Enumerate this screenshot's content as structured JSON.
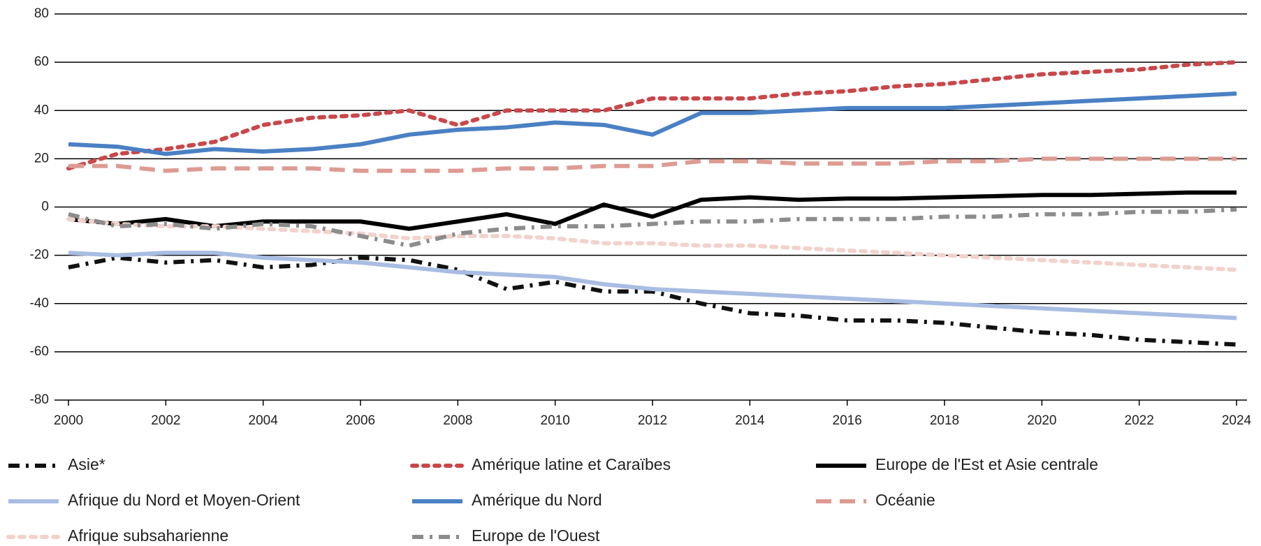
{
  "chart_data": {
    "type": "line",
    "x": [
      2000,
      2001,
      2002,
      2003,
      2004,
      2005,
      2006,
      2007,
      2008,
      2009,
      2010,
      2011,
      2012,
      2013,
      2014,
      2015,
      2016,
      2017,
      2018,
      2019,
      2020,
      2021,
      2022,
      2023,
      2024
    ],
    "xlim": [
      2000,
      2024
    ],
    "xticks": [
      2000,
      2002,
      2004,
      2006,
      2008,
      2010,
      2012,
      2014,
      2016,
      2018,
      2020,
      2022,
      2024
    ],
    "ylim": [
      -80,
      80
    ],
    "yticks": [
      -80,
      -60,
      -40,
      -20,
      0,
      20,
      40,
      60,
      80
    ],
    "grid": true,
    "series": [
      {
        "name": "Asie*",
        "color": "#111111",
        "linestyle": "dashdot",
        "values": [
          -25,
          -21,
          -23,
          -22,
          -25,
          -24,
          -21,
          -22,
          -26,
          -34,
          -31,
          -35,
          -35,
          -40,
          -44,
          -45,
          -47,
          -47,
          -48,
          -50,
          -52,
          -53,
          -55,
          -56,
          -57
        ]
      },
      {
        "name": "Amérique latine et Caraïbes",
        "color": "#c9474a",
        "linestyle": "dotted",
        "values": [
          16,
          22,
          24,
          27,
          34,
          37,
          38,
          40,
          34,
          40,
          40,
          40,
          45,
          45,
          45,
          47,
          48,
          50,
          51,
          53,
          55,
          56,
          57,
          59,
          60
        ]
      },
      {
        "name": "Europe de l'Est et Asie centrale",
        "color": "#000000",
        "linestyle": "solid",
        "values": [
          -5,
          -7,
          -5,
          -8,
          -6,
          -6,
          -6,
          -9,
          -6,
          -3,
          -7,
          1,
          -4,
          3,
          4,
          3,
          3.5,
          3.5,
          4,
          4.5,
          5,
          5,
          5.5,
          6,
          6
        ]
      },
      {
        "name": "Afrique du Nord et Moyen-Orient",
        "color": "#a9bde3",
        "linestyle": "solid",
        "values": [
          -19,
          -20,
          -19,
          -19,
          -21,
          -22,
          -23,
          -25,
          -27,
          -28,
          -29,
          -32,
          -34,
          -35,
          -36,
          -37,
          -38,
          -39,
          -40,
          -41,
          -42,
          -43,
          -44,
          -45,
          -46
        ]
      },
      {
        "name": "Amérique du Nord",
        "color": "#4a80c4",
        "linestyle": "solid",
        "values": [
          26,
          25,
          22,
          24,
          23,
          24,
          26,
          30,
          32,
          33,
          35,
          34,
          30,
          39,
          39,
          40,
          41,
          41,
          41,
          42,
          43,
          44,
          45,
          46,
          47
        ]
      },
      {
        "name": "Océanie",
        "color": "#dd9b92",
        "linestyle": "dashed",
        "values": [
          17,
          17,
          15,
          16,
          16,
          16,
          15,
          15,
          15,
          16,
          16,
          17,
          17,
          19,
          19,
          18,
          18,
          18,
          19,
          19,
          20,
          20,
          20,
          20,
          20
        ]
      },
      {
        "name": "Afrique subsaharienne",
        "color": "#f2d2cc",
        "linestyle": "dotted",
        "values": [
          -5,
          -7,
          -8,
          -8,
          -9,
          -10,
          -11,
          -13,
          -12,
          -12,
          -13,
          -15,
          -15,
          -16,
          -16,
          -17,
          -18,
          -19,
          -20,
          -21,
          -22,
          -23,
          -24,
          -25,
          -26
        ]
      },
      {
        "name": "Europe de l'Ouest",
        "color": "#8c8c8c",
        "linestyle": "dashdot",
        "values": [
          -3,
          -8,
          -7,
          -9,
          -7,
          -8,
          -12,
          -16,
          -11,
          -9,
          -8,
          -8,
          -7,
          -6,
          -6,
          -5,
          -5,
          -5,
          -4,
          -4,
          -3,
          -3,
          -2,
          -2,
          -1
        ]
      }
    ]
  }
}
